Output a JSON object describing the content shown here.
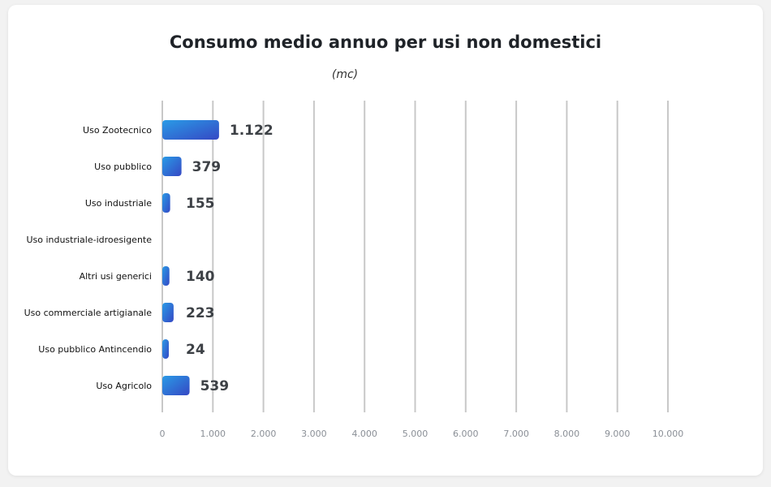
{
  "chart_data": {
    "type": "bar",
    "orientation": "horizontal",
    "title": "Consumo medio annuo per usi non domestici",
    "subtitle": "(mc)",
    "categories": [
      "Uso Zootecnico",
      "Uso pubblico",
      "Uso industriale",
      "Uso industriale-idroesigente",
      "Altri usi generici",
      "Uso commerciale artigianale",
      "Uso pubblico Antincendio",
      "Uso Agricolo"
    ],
    "values": [
      1122,
      379,
      155,
      null,
      140,
      223,
      24,
      539
    ],
    "value_labels": [
      "1.122",
      "379",
      "155",
      "",
      "140",
      "223",
      "24",
      "539"
    ],
    "xlim": [
      0,
      10000
    ],
    "x_ticks": [
      0,
      1000,
      2000,
      3000,
      4000,
      5000,
      6000,
      7000,
      8000,
      9000,
      10000
    ],
    "x_tick_labels": [
      "0",
      "1.000",
      "2.000",
      "3.000",
      "4.000",
      "5.000",
      "6.000",
      "7.000",
      "8.000",
      "9.000",
      "10.000"
    ],
    "grid": true,
    "bar_color_start": "#2a9be6",
    "bar_color_end": "#3548c4",
    "grid_color": "#c8c8c8"
  }
}
